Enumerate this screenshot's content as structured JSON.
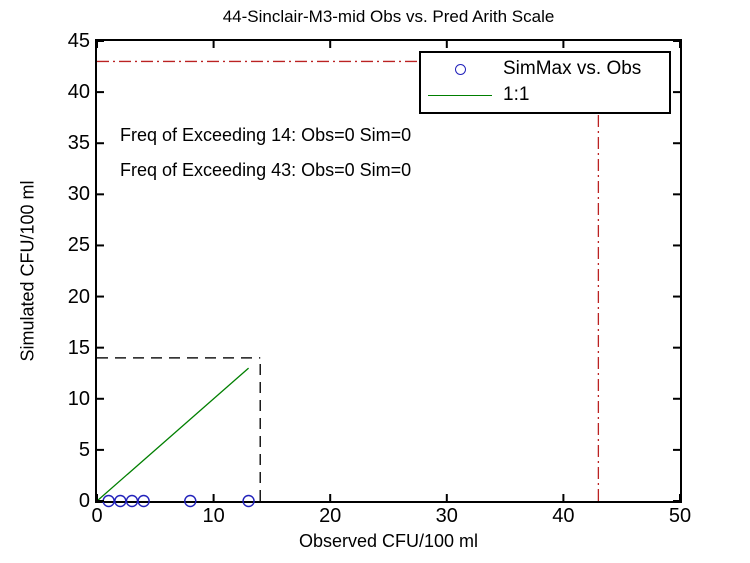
{
  "chart_data": {
    "type": "scatter",
    "title": "44-Sinclair-M3-mid Obs vs. Pred Arith Scale",
    "xlabel": "Observed CFU/100 ml",
    "ylabel": "Simulated CFU/100 ml",
    "xlim": [
      0,
      50
    ],
    "ylim": [
      0,
      45
    ],
    "x_ticks": [
      0,
      10,
      20,
      30,
      40,
      50
    ],
    "y_ticks": [
      0,
      5,
      10,
      15,
      20,
      25,
      30,
      35,
      40,
      45
    ],
    "grid": false,
    "legend_position": "top-right",
    "annotations": [
      "Freq of Exceeding 14: Obs=0 Sim=0",
      "Freq of Exceeding 43: Obs=0 Sim=0"
    ],
    "series": [
      {
        "name": "SimMax vs. Obs",
        "type": "scatter",
        "marker": "circle",
        "color": "#2222bb",
        "points": [
          [
            1,
            0
          ],
          [
            2,
            0
          ],
          [
            3,
            0
          ],
          [
            4,
            0
          ],
          [
            8,
            0
          ],
          [
            13,
            0
          ]
        ]
      },
      {
        "name": "1:1",
        "type": "line",
        "color": "#007f00",
        "points": [
          [
            0,
            0
          ],
          [
            13,
            13
          ]
        ]
      }
    ],
    "reference_lines": [
      {
        "name": "threshold-43-horizontal",
        "orientation": "horizontal",
        "value": 43,
        "from": 0,
        "to": 43,
        "style": "dash-dot",
        "color": "#bb2222"
      },
      {
        "name": "threshold-43-vertical",
        "orientation": "vertical",
        "value": 43,
        "from": 0,
        "to": 43,
        "style": "dash-dot",
        "color": "#bb2222"
      },
      {
        "name": "threshold-14-horizontal",
        "orientation": "horizontal",
        "value": 14,
        "from": 0,
        "to": 14,
        "style": "dashed",
        "color": "#1a1a1a"
      },
      {
        "name": "threshold-14-vertical",
        "orientation": "vertical",
        "value": 14,
        "from": 0,
        "to": 14,
        "style": "dashed",
        "color": "#1a1a1a"
      }
    ],
    "axis_color": "#000000",
    "background_color": "#ffffff"
  }
}
